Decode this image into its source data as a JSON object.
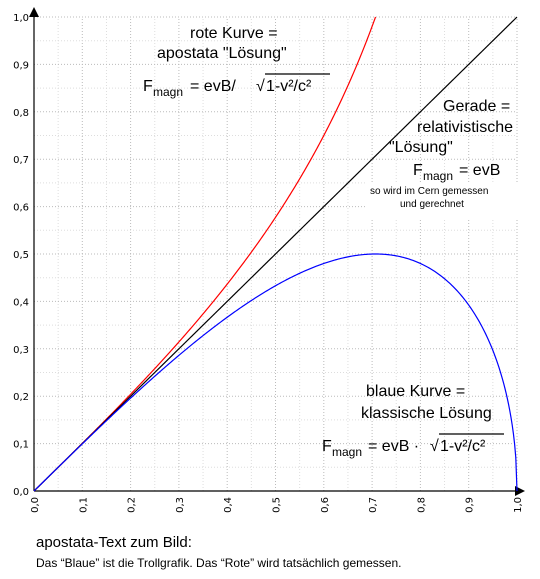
{
  "chart_data": {
    "type": "line",
    "xlim": [
      0,
      1
    ],
    "ylim": [
      0,
      1
    ],
    "x_ticks": [
      "0,0",
      "0,1",
      "0,2",
      "0,3",
      "0,4",
      "0,5",
      "0,6",
      "0,7",
      "0,8",
      "0,9",
      "1,0"
    ],
    "y_ticks": [
      "0,0",
      "0,1",
      "0,2",
      "0,3",
      "0,4",
      "0,5",
      "0,6",
      "0,7",
      "0,8",
      "0,9",
      "1,0"
    ],
    "grid": true,
    "series": [
      {
        "color": "#ff0000",
        "formula": "x/sqrt(1-x^2)",
        "x": [
          0,
          0.1,
          0.2,
          0.3,
          0.4,
          0.5,
          0.6,
          0.65,
          0.7071
        ],
        "y": [
          0,
          0.1005,
          0.2041,
          0.3145,
          0.4364,
          0.5774,
          0.75,
          0.8553,
          1.0
        ]
      },
      {
        "color": "#000000",
        "formula": "x",
        "x": [
          0,
          1
        ],
        "y": [
          0,
          1
        ]
      },
      {
        "color": "#0000ff",
        "formula": "x*sqrt(1-x^2)",
        "x": [
          0,
          0.1,
          0.2,
          0.3,
          0.4,
          0.5,
          0.6,
          0.7,
          0.7071,
          0.8,
          0.9,
          0.95,
          0.99,
          1.0
        ],
        "y": [
          0,
          0.0995,
          0.196,
          0.2862,
          0.3666,
          0.433,
          0.48,
          0.4999,
          0.5,
          0.48,
          0.3923,
          0.2966,
          0.1397,
          0
        ]
      }
    ],
    "annotations": {
      "red": {
        "line1": "rote Kurve  =",
        "line2": "apostata \"Lösung\"",
        "f": "F",
        "sub": "magn",
        "eq": "=  evB/",
        "root": "√",
        "rad": "1-v²/c²"
      },
      "black": {
        "line1": "Gerade =",
        "line2": "relativistische",
        "line3": "\"Lösung\"",
        "f": "F",
        "sub": "magn",
        "eq": "=  evB",
        "small1": "so wird im Cern gemessen",
        "small2": "und gerechnet"
      },
      "blue": {
        "line1": "blaue Kurve  =",
        "line2": "klassische Lösung",
        "f": "F",
        "sub": "magn",
        "eq": "=  evB ·",
        "root": "√",
        "rad": "1-v²/c²"
      }
    }
  },
  "caption": {
    "title": "apostata-Text zum Bild:",
    "text": "Das “Blaue” ist die Trollgrafik. Das “Rote” wird tatsächlich gemessen."
  }
}
